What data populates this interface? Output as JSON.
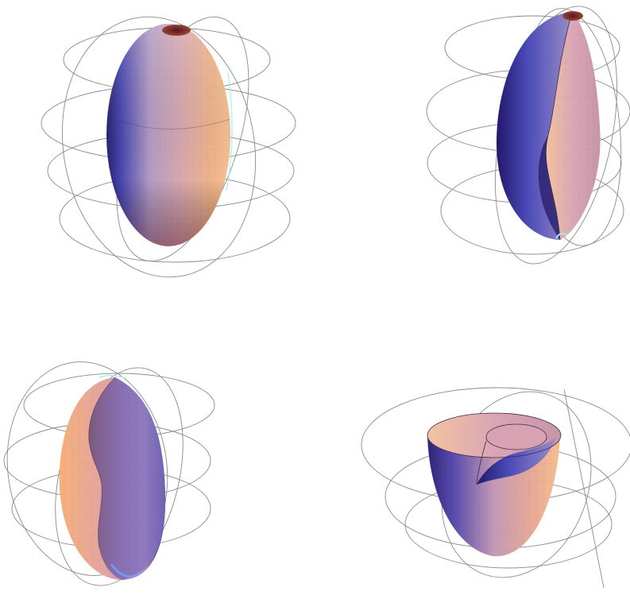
{
  "figure": {
    "panels": [
      {
        "id": "top-left",
        "shape": "closed-ellipsoid"
      },
      {
        "id": "top-right",
        "shape": "cut-ellipsoid-side"
      },
      {
        "id": "bottom-left",
        "shape": "cut-ellipsoid-front"
      },
      {
        "id": "bottom-right",
        "shape": "open-cup-with-inner-wall"
      }
    ],
    "colors": {
      "warm": "#f2b07a",
      "mid": "#c89aa8",
      "cool": "#3c3c9a",
      "deep": "#2a2070",
      "cap": "#7a2030",
      "cyan_edge": "#9ff0e0",
      "wireframe": "#8a8a8a"
    }
  }
}
